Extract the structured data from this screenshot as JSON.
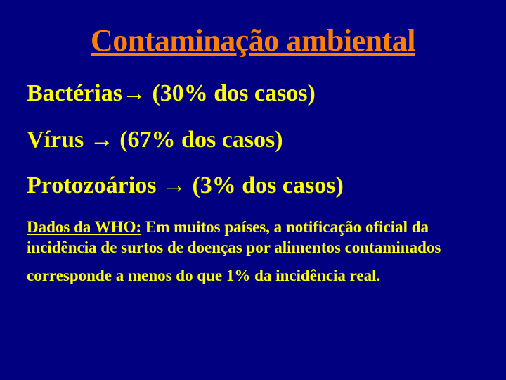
{
  "slide": {
    "title": "Contaminação ambiental",
    "title_color": "#ff8000",
    "background_color": "#000080",
    "text_color": "#ffff00",
    "title_fontsize": 44,
    "item_fontsize": 34,
    "footnote_fontsize": 23,
    "items": [
      {
        "label": "Bactérias",
        "value": "(30% dos casos)"
      },
      {
        "label": "Vírus ",
        "value": "(67% dos casos)"
      },
      {
        "label": "Protozoários ",
        "value": "(3% dos casos)"
      }
    ],
    "arrow_glyph": "→",
    "footnote_lead": "Dados da WHO:",
    "footnote_body": " Em muitos países, a notificação oficial da incidência de surtos de doenças por alimentos contaminados",
    "footnote_line2": "corresponde  a menos do que 1% da incidência real."
  }
}
